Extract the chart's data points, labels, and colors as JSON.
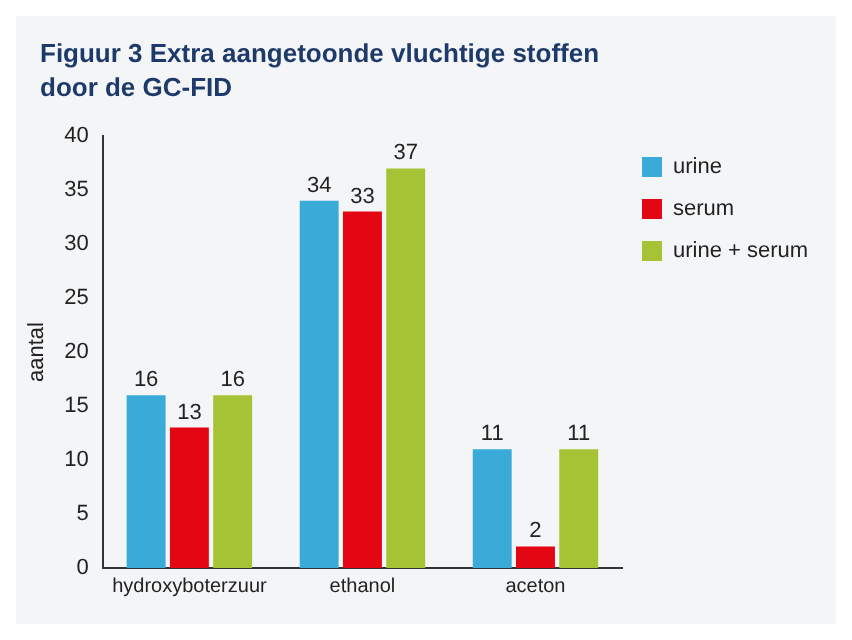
{
  "chart_data": {
    "type": "bar",
    "title": "Figuur 3 Extra aangetoonde vluchtige stoffen door de GC-FID",
    "ylabel": "aantal",
    "categories": [
      "hydroxyboterzuur",
      "ethanol",
      "aceton"
    ],
    "series": [
      {
        "name": "urine",
        "color": "#3aaad9",
        "values": [
          16,
          34,
          11
        ]
      },
      {
        "name": "serum",
        "color": "#e30613",
        "values": [
          13,
          33,
          2
        ]
      },
      {
        "name": "urine + serum",
        "color": "#a6c336",
        "values": [
          16,
          37,
          11
        ]
      }
    ],
    "ylim": [
      0,
      40
    ],
    "yticks": [
      0,
      5,
      10,
      15,
      20,
      25,
      30,
      35,
      40
    ],
    "grid": false,
    "legend": "top right",
    "data_labels": true
  }
}
